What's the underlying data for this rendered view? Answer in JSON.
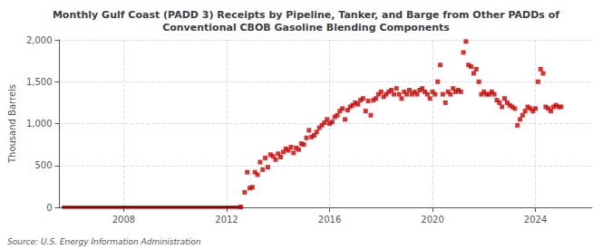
{
  "chart_data": {
    "type": "scatter",
    "title": "Monthly Gulf Coast (PADD 3) Receipts by Pipeline, Tanker, and Barge from Other PADDs of\nConventional CBOB Gasoline Blending Components",
    "ylabel": "Thousand Barrels",
    "source": "Source: U.S. Energy Information Administration",
    "xlim": [
      2005.5,
      2026.2
    ],
    "xticks": [
      2008,
      2012,
      2016,
      2020,
      2024
    ],
    "ylim": [
      0,
      2000
    ],
    "yticks": [
      0,
      500,
      {
        "value": 1000,
        "label": "1,000"
      },
      {
        "value": 1500,
        "label": "1,500"
      },
      {
        "value": 2000,
        "label": "2,000"
      }
    ],
    "grid": true,
    "series": [
      {
        "type": "line",
        "color": "#8b0000",
        "x": [
          2005.6,
          2012.6
        ],
        "values": [
          0,
          0
        ]
      },
      {
        "type": "scatter",
        "color": "#cc0000",
        "marker": "square",
        "x": [
          2012.55,
          2012.7,
          2012.8,
          2012.9,
          2013.0,
          2013.1,
          2013.2,
          2013.3,
          2013.4,
          2013.5,
          2013.6,
          2013.7,
          2013.8,
          2013.9,
          2014.0,
          2014.1,
          2014.2,
          2014.3,
          2014.4,
          2014.5,
          2014.6,
          2014.7,
          2014.8,
          2014.9,
          2015.0,
          2015.1,
          2015.2,
          2015.3,
          2015.4,
          2015.5,
          2015.6,
          2015.7,
          2015.8,
          2015.9,
          2016.0,
          2016.1,
          2016.2,
          2016.3,
          2016.4,
          2016.5,
          2016.6,
          2016.7,
          2016.8,
          2016.9,
          2017.0,
          2017.1,
          2017.2,
          2017.3,
          2017.4,
          2017.5,
          2017.6,
          2017.7,
          2017.8,
          2017.9,
          2018.0,
          2018.1,
          2018.2,
          2018.3,
          2018.4,
          2018.5,
          2018.6,
          2018.7,
          2018.8,
          2018.9,
          2019.0,
          2019.1,
          2019.2,
          2019.3,
          2019.4,
          2019.5,
          2019.6,
          2019.7,
          2019.8,
          2019.9,
          2020.0,
          2020.1,
          2020.2,
          2020.3,
          2020.4,
          2020.5,
          2020.6,
          2020.7,
          2020.8,
          2020.9,
          2021.0,
          2021.1,
          2021.2,
          2021.3,
          2021.4,
          2021.5,
          2021.6,
          2021.7,
          2021.8,
          2021.9,
          2022.0,
          2022.1,
          2022.2,
          2022.3,
          2022.4,
          2022.5,
          2022.6,
          2022.7,
          2022.8,
          2022.9,
          2023.0,
          2023.1,
          2023.2,
          2023.3,
          2023.4,
          2023.5,
          2023.6,
          2023.7,
          2023.8,
          2023.9,
          2024.0,
          2024.1,
          2024.2,
          2024.3,
          2024.4,
          2024.5,
          2024.6,
          2024.7,
          2024.8,
          2024.9,
          2025.0
        ],
        "values": [
          5,
          180,
          420,
          230,
          240,
          420,
          390,
          540,
          450,
          590,
          480,
          630,
          610,
          570,
          640,
          600,
          660,
          700,
          680,
          720,
          650,
          710,
          690,
          760,
          750,
          830,
          920,
          840,
          860,
          900,
          950,
          980,
          1010,
          1050,
          1000,
          1020,
          1080,
          1100,
          1150,
          1180,
          1050,
          1160,
          1200,
          1220,
          1250,
          1230,
          1280,
          1300,
          1150,
          1270,
          1100,
          1280,
          1300,
          1350,
          1380,
          1320,
          1350,
          1380,
          1400,
          1350,
          1420,
          1350,
          1300,
          1380,
          1350,
          1400,
          1350,
          1380,
          1350,
          1400,
          1420,
          1380,
          1350,
          1300,
          1380,
          1350,
          1500,
          1700,
          1350,
          1250,
          1380,
          1350,
          1420,
          1380,
          1400,
          1380,
          1850,
          1980,
          1700,
          1680,
          1600,
          1650,
          1500,
          1350,
          1380,
          1350,
          1350,
          1380,
          1350,
          1280,
          1250,
          1200,
          1300,
          1250,
          1220,
          1200,
          1180,
          980,
          1050,
          1100,
          1150,
          1200,
          1180,
          1150,
          1180,
          1500,
          1650,
          1600,
          1200,
          1180,
          1150,
          1200,
          1220,
          1200,
          1200
        ]
      }
    ]
  }
}
